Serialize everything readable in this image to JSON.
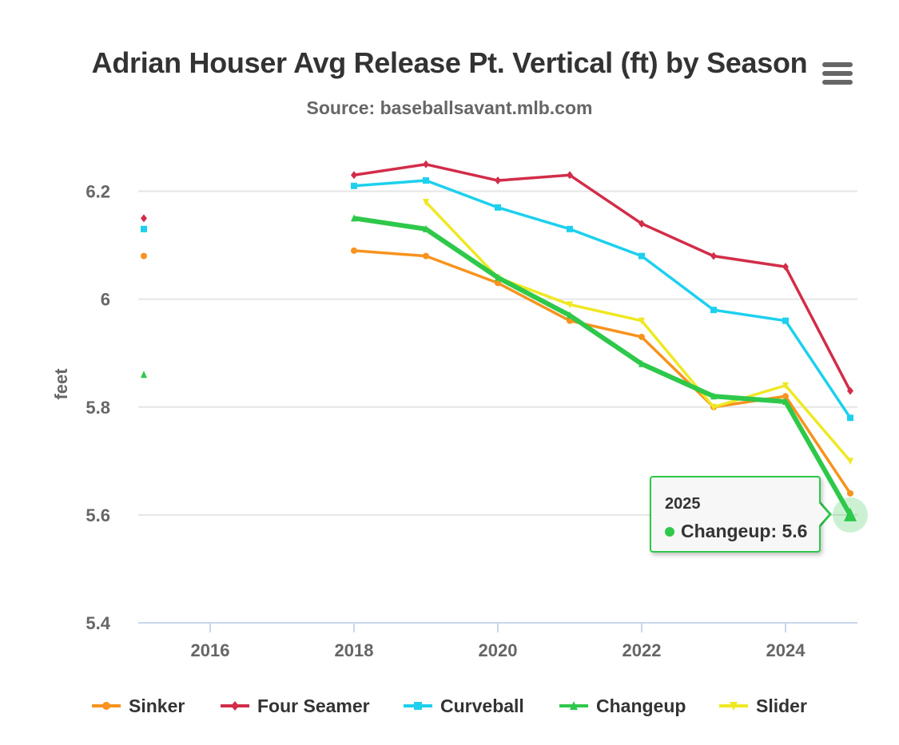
{
  "chart_data": {
    "type": "line",
    "title": "Adrian Houser Avg Release Pt. Vertical (ft) by Season",
    "subtitle": "Source: baseballsavant.mlb.com",
    "ylabel": "feet",
    "xlabel": "",
    "xlim": [
      2015,
      2025
    ],
    "ylim": [
      5.4,
      6.3
    ],
    "x_ticks": [
      2016,
      2018,
      2020,
      2022,
      2024
    ],
    "y_ticks": [
      5.4,
      5.6,
      5.8,
      6,
      6.2
    ],
    "x_tick_labels": [
      "2016",
      "2018",
      "2020",
      "2022",
      "2024"
    ],
    "y_tick_labels": [
      "5.4",
      "5.6",
      "5.8",
      "6",
      "6.2"
    ],
    "grid": "horizontal",
    "legend_position": "bottom",
    "series": [
      {
        "name": "Sinker",
        "color": "#f7931e",
        "marker": "circle",
        "points": [
          [
            2015,
            6.08
          ],
          [
            2018,
            6.09
          ],
          [
            2019,
            6.08
          ],
          [
            2020,
            6.03
          ],
          [
            2021,
            5.96
          ],
          [
            2022,
            5.93
          ],
          [
            2023,
            5.8
          ],
          [
            2024,
            5.82
          ],
          [
            2025,
            5.64
          ]
        ]
      },
      {
        "name": "Four Seamer",
        "color": "#d22d49",
        "marker": "diamond",
        "points": [
          [
            2015,
            6.15
          ],
          [
            2018,
            6.23
          ],
          [
            2019,
            6.25
          ],
          [
            2020,
            6.22
          ],
          [
            2021,
            6.23
          ],
          [
            2022,
            6.14
          ],
          [
            2023,
            6.08
          ],
          [
            2024,
            6.06
          ],
          [
            2025,
            5.83
          ]
        ]
      },
      {
        "name": "Curveball",
        "color": "#1dd0ee",
        "marker": "square",
        "points": [
          [
            2015,
            6.13
          ],
          [
            2018,
            6.21
          ],
          [
            2019,
            6.22
          ],
          [
            2020,
            6.17
          ],
          [
            2021,
            6.13
          ],
          [
            2022,
            6.08
          ],
          [
            2023,
            5.98
          ],
          [
            2024,
            5.96
          ],
          [
            2025,
            5.78
          ]
        ]
      },
      {
        "name": "Changeup",
        "color": "#2ec84a",
        "marker": "triangle",
        "points": [
          [
            2015,
            5.86
          ],
          [
            2018,
            6.15
          ],
          [
            2019,
            6.13
          ],
          [
            2020,
            6.04
          ],
          [
            2021,
            5.97
          ],
          [
            2022,
            5.88
          ],
          [
            2023,
            5.82
          ],
          [
            2024,
            5.81
          ],
          [
            2025,
            5.6
          ]
        ]
      },
      {
        "name": "Slider",
        "color": "#eee823",
        "marker": "triangle-down",
        "points": [
          [
            2019,
            6.18
          ],
          [
            2020,
            6.04
          ],
          [
            2021,
            5.99
          ],
          [
            2022,
            5.96
          ],
          [
            2023,
            5.8
          ],
          [
            2024,
            5.84
          ],
          [
            2025,
            5.7
          ]
        ]
      }
    ],
    "highlighted_series": "Changeup",
    "tooltip": {
      "header": "2025",
      "series": "Changeup",
      "label": "Changeup: 5.6",
      "x": 2025,
      "y": 5.6
    }
  }
}
